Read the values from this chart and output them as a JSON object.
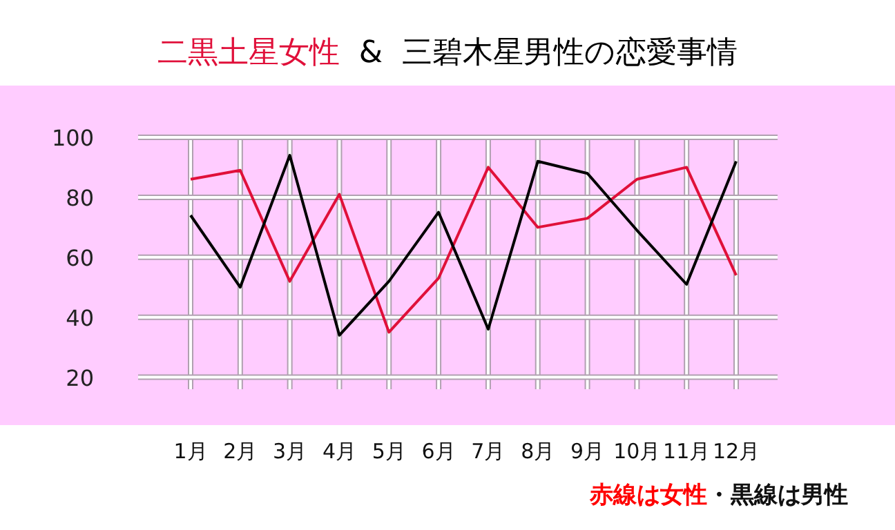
{
  "chart_data": {
    "type": "line",
    "title": "二黒土星女性 & 三碧木星男性の恋愛事情",
    "categories": [
      "1月",
      "2月",
      "3月",
      "4月",
      "5月",
      "6月",
      "7月",
      "8月",
      "9月",
      "10月",
      "11月",
      "12月"
    ],
    "series": [
      {
        "color": "#e0103a",
        "values": [
          86,
          89,
          52,
          81,
          35,
          53,
          90,
          70,
          73,
          86,
          90,
          54
        ]
      },
      {
        "color": "#000000",
        "values": [
          74,
          50,
          94,
          34,
          52,
          75,
          36,
          92,
          88,
          69,
          51,
          92
        ]
      }
    ],
    "ylim": [
      16,
      100
    ],
    "yticks": [
      20,
      40,
      60,
      80,
      100
    ],
    "grid": true,
    "line_style": "solid",
    "marker": "none",
    "annotations": [
      "赤線は女性",
      "・黒線は男性"
    ]
  }
}
